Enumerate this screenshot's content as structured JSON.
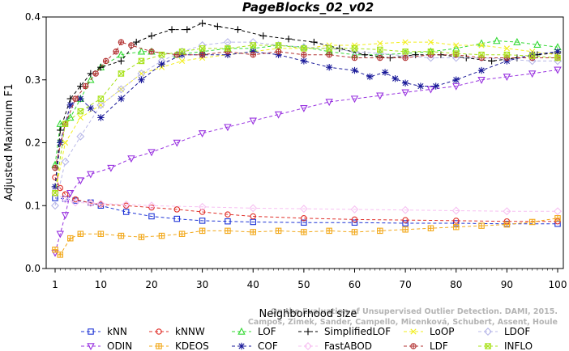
{
  "chart_data": {
    "type": "line",
    "title": "PageBlocks_02_v02",
    "xlabel": "Neighborhood size",
    "ylabel": "Adjusted Maximum F1",
    "xlim": [
      1,
      100
    ],
    "ylim": [
      0,
      0.4
    ],
    "xticks": [
      "1",
      "10",
      "20",
      "30",
      "40",
      "50",
      "60",
      "70",
      "80",
      "90",
      "100"
    ],
    "yticks": [
      "0.0",
      "0.1",
      "0.2",
      "0.3",
      "0.4"
    ],
    "grid": false,
    "legend_position": "bottom",
    "watermark": [
      "Campos, Zimek, Sander, Campello, Micenková, Schubert, Assent, Houle",
      "On the Evaluation of Unsupervised Outlier Detection. DAMI, 2015."
    ],
    "series": [
      {
        "name": "kNN",
        "color": "#1f35d6",
        "marker": "square",
        "points": [
          [
            1,
            0.112
          ],
          [
            3,
            0.111
          ],
          [
            5,
            0.108
          ],
          [
            8,
            0.105
          ],
          [
            10,
            0.1
          ],
          [
            15,
            0.09
          ],
          [
            20,
            0.083
          ],
          [
            25,
            0.079
          ],
          [
            30,
            0.076
          ],
          [
            35,
            0.075
          ],
          [
            40,
            0.074
          ],
          [
            50,
            0.073
          ],
          [
            60,
            0.073
          ],
          [
            70,
            0.072
          ],
          [
            80,
            0.072
          ],
          [
            90,
            0.071
          ],
          [
            100,
            0.071
          ]
        ]
      },
      {
        "name": "kNNW",
        "color": "#e0302a",
        "marker": "circle",
        "points": [
          [
            1,
            0.145
          ],
          [
            2,
            0.128
          ],
          [
            3,
            0.118
          ],
          [
            5,
            0.11
          ],
          [
            8,
            0.104
          ],
          [
            10,
            0.102
          ],
          [
            15,
            0.1
          ],
          [
            20,
            0.097
          ],
          [
            25,
            0.094
          ],
          [
            30,
            0.09
          ],
          [
            35,
            0.086
          ],
          [
            40,
            0.083
          ],
          [
            50,
            0.08
          ],
          [
            60,
            0.078
          ],
          [
            70,
            0.077
          ],
          [
            80,
            0.076
          ],
          [
            90,
            0.075
          ],
          [
            100,
            0.075
          ]
        ]
      },
      {
        "name": "LOF",
        "color": "#33d933",
        "marker": "triangle",
        "points": [
          [
            1,
            0.165
          ],
          [
            2,
            0.23
          ],
          [
            4,
            0.24
          ],
          [
            6,
            0.27
          ],
          [
            8,
            0.3
          ],
          [
            10,
            0.32
          ],
          [
            14,
            0.34
          ],
          [
            18,
            0.345
          ],
          [
            20,
            0.345
          ],
          [
            25,
            0.34
          ],
          [
            30,
            0.345
          ],
          [
            35,
            0.35
          ],
          [
            40,
            0.35
          ],
          [
            45,
            0.355
          ],
          [
            50,
            0.352
          ],
          [
            55,
            0.345
          ],
          [
            60,
            0.34
          ],
          [
            65,
            0.34
          ],
          [
            70,
            0.342
          ],
          [
            75,
            0.345
          ],
          [
            80,
            0.35
          ],
          [
            85,
            0.358
          ],
          [
            88,
            0.362
          ],
          [
            92,
            0.36
          ],
          [
            96,
            0.356
          ],
          [
            100,
            0.352
          ]
        ]
      },
      {
        "name": "SimplifiedLOF",
        "color": "#000000",
        "marker": "plus",
        "points": [
          [
            1,
            0.13
          ],
          [
            2,
            0.22
          ],
          [
            4,
            0.27
          ],
          [
            6,
            0.29
          ],
          [
            8,
            0.31
          ],
          [
            10,
            0.32
          ],
          [
            14,
            0.33
          ],
          [
            17,
            0.36
          ],
          [
            20,
            0.37
          ],
          [
            24,
            0.38
          ],
          [
            27,
            0.38
          ],
          [
            30,
            0.39
          ],
          [
            33,
            0.385
          ],
          [
            37,
            0.38
          ],
          [
            42,
            0.37
          ],
          [
            47,
            0.365
          ],
          [
            52,
            0.36
          ],
          [
            57,
            0.35
          ],
          [
            62,
            0.34
          ],
          [
            67,
            0.335
          ],
          [
            72,
            0.34
          ],
          [
            77,
            0.34
          ],
          [
            82,
            0.335
          ],
          [
            87,
            0.33
          ],
          [
            92,
            0.335
          ],
          [
            96,
            0.34
          ],
          [
            100,
            0.343
          ]
        ]
      },
      {
        "name": "LoOP",
        "color": "#f2ee1c",
        "marker": "x",
        "points": [
          [
            1,
            0.12
          ],
          [
            3,
            0.2
          ],
          [
            6,
            0.24
          ],
          [
            10,
            0.26
          ],
          [
            14,
            0.285
          ],
          [
            18,
            0.31
          ],
          [
            22,
            0.32
          ],
          [
            26,
            0.33
          ],
          [
            30,
            0.335
          ],
          [
            35,
            0.34
          ],
          [
            40,
            0.345
          ],
          [
            45,
            0.35
          ],
          [
            50,
            0.35
          ],
          [
            55,
            0.355
          ],
          [
            60,
            0.355
          ],
          [
            65,
            0.358
          ],
          [
            70,
            0.36
          ],
          [
            75,
            0.36
          ],
          [
            80,
            0.355
          ],
          [
            85,
            0.355
          ],
          [
            90,
            0.35
          ],
          [
            95,
            0.345
          ],
          [
            100,
            0.34
          ]
        ]
      },
      {
        "name": "LDOF",
        "color": "#b8b8e8",
        "marker": "diamond",
        "points": [
          [
            1,
            0.1
          ],
          [
            3,
            0.17
          ],
          [
            6,
            0.21
          ],
          [
            10,
            0.26
          ],
          [
            14,
            0.285
          ],
          [
            18,
            0.31
          ],
          [
            22,
            0.33
          ],
          [
            26,
            0.345
          ],
          [
            30,
            0.355
          ],
          [
            35,
            0.36
          ],
          [
            40,
            0.36
          ],
          [
            45,
            0.355
          ],
          [
            50,
            0.352
          ],
          [
            55,
            0.35
          ],
          [
            60,
            0.345
          ],
          [
            65,
            0.342
          ],
          [
            70,
            0.338
          ],
          [
            75,
            0.335
          ],
          [
            80,
            0.335
          ],
          [
            85,
            0.335
          ],
          [
            90,
            0.333
          ],
          [
            95,
            0.33
          ],
          [
            100,
            0.33
          ]
        ]
      },
      {
        "name": "ODIN",
        "color": "#9933e0",
        "marker": "triangle-down",
        "points": [
          [
            1,
            0.025
          ],
          [
            2,
            0.055
          ],
          [
            3,
            0.085
          ],
          [
            4,
            0.12
          ],
          [
            6,
            0.14
          ],
          [
            8,
            0.15
          ],
          [
            12,
            0.16
          ],
          [
            16,
            0.175
          ],
          [
            20,
            0.185
          ],
          [
            25,
            0.2
          ],
          [
            30,
            0.215
          ],
          [
            35,
            0.225
          ],
          [
            40,
            0.235
          ],
          [
            45,
            0.245
          ],
          [
            50,
            0.255
          ],
          [
            55,
            0.265
          ],
          [
            60,
            0.27
          ],
          [
            65,
            0.275
          ],
          [
            70,
            0.28
          ],
          [
            75,
            0.285
          ],
          [
            80,
            0.29
          ],
          [
            85,
            0.3
          ],
          [
            90,
            0.305
          ],
          [
            95,
            0.31
          ],
          [
            100,
            0.316
          ]
        ]
      },
      {
        "name": "KDEOS",
        "color": "#f2a81a",
        "marker": "square-cross",
        "points": [
          [
            1,
            0.03
          ],
          [
            2,
            0.022
          ],
          [
            4,
            0.048
          ],
          [
            6,
            0.055
          ],
          [
            10,
            0.055
          ],
          [
            14,
            0.052
          ],
          [
            18,
            0.05
          ],
          [
            22,
            0.052
          ],
          [
            26,
            0.055
          ],
          [
            30,
            0.06
          ],
          [
            35,
            0.06
          ],
          [
            40,
            0.058
          ],
          [
            45,
            0.06
          ],
          [
            50,
            0.058
          ],
          [
            55,
            0.06
          ],
          [
            60,
            0.058
          ],
          [
            65,
            0.06
          ],
          [
            70,
            0.062
          ],
          [
            75,
            0.064
          ],
          [
            80,
            0.066
          ],
          [
            85,
            0.068
          ],
          [
            90,
            0.07
          ],
          [
            95,
            0.074
          ],
          [
            100,
            0.08
          ]
        ]
      },
      {
        "name": "COF",
        "color": "#1a1a99",
        "marker": "star",
        "points": [
          [
            1,
            0.13
          ],
          [
            2,
            0.2
          ],
          [
            4,
            0.26
          ],
          [
            6,
            0.27
          ],
          [
            8,
            0.255
          ],
          [
            10,
            0.24
          ],
          [
            14,
            0.27
          ],
          [
            18,
            0.3
          ],
          [
            22,
            0.325
          ],
          [
            26,
            0.34
          ],
          [
            30,
            0.34
          ],
          [
            35,
            0.34
          ],
          [
            40,
            0.345
          ],
          [
            45,
            0.34
          ],
          [
            50,
            0.33
          ],
          [
            55,
            0.32
          ],
          [
            60,
            0.315
          ],
          [
            63,
            0.305
          ],
          [
            66,
            0.312
          ],
          [
            68,
            0.302
          ],
          [
            70,
            0.295
          ],
          [
            73,
            0.29
          ],
          [
            76,
            0.29
          ],
          [
            80,
            0.3
          ],
          [
            85,
            0.315
          ],
          [
            90,
            0.33
          ],
          [
            95,
            0.34
          ],
          [
            100,
            0.345
          ]
        ]
      },
      {
        "name": "FastABOD",
        "color": "#f7c0f2",
        "marker": "diamond",
        "points": [
          [
            1,
            0.12
          ],
          [
            3,
            0.11
          ],
          [
            5,
            0.105
          ],
          [
            8,
            0.104
          ],
          [
            10,
            0.103
          ],
          [
            15,
            0.102
          ],
          [
            20,
            0.1
          ],
          [
            30,
            0.098
          ],
          [
            40,
            0.096
          ],
          [
            50,
            0.095
          ],
          [
            60,
            0.094
          ],
          [
            70,
            0.093
          ],
          [
            80,
            0.092
          ],
          [
            90,
            0.091
          ],
          [
            100,
            0.091
          ]
        ]
      },
      {
        "name": "LDF",
        "color": "#b33333",
        "marker": "circle-plus",
        "points": [
          [
            1,
            0.16
          ],
          [
            3,
            0.23
          ],
          [
            5,
            0.27
          ],
          [
            7,
            0.29
          ],
          [
            9,
            0.31
          ],
          [
            11,
            0.33
          ],
          [
            13,
            0.345
          ],
          [
            14,
            0.36
          ],
          [
            16,
            0.355
          ],
          [
            20,
            0.345
          ],
          [
            25,
            0.34
          ],
          [
            30,
            0.34
          ],
          [
            35,
            0.345
          ],
          [
            40,
            0.34
          ],
          [
            45,
            0.345
          ],
          [
            50,
            0.34
          ],
          [
            55,
            0.34
          ],
          [
            60,
            0.335
          ],
          [
            65,
            0.335
          ],
          [
            70,
            0.335
          ],
          [
            75,
            0.34
          ],
          [
            80,
            0.34
          ],
          [
            85,
            0.335
          ],
          [
            90,
            0.335
          ],
          [
            95,
            0.335
          ],
          [
            100,
            0.335
          ]
        ]
      },
      {
        "name": "INFLO",
        "color": "#a8e21a",
        "marker": "square-x",
        "points": [
          [
            1,
            0.12
          ],
          [
            3,
            0.23
          ],
          [
            6,
            0.25
          ],
          [
            10,
            0.27
          ],
          [
            14,
            0.31
          ],
          [
            18,
            0.33
          ],
          [
            22,
            0.34
          ],
          [
            26,
            0.345
          ],
          [
            30,
            0.35
          ],
          [
            35,
            0.35
          ],
          [
            40,
            0.355
          ],
          [
            45,
            0.355
          ],
          [
            50,
            0.35
          ],
          [
            55,
            0.35
          ],
          [
            60,
            0.35
          ],
          [
            65,
            0.348
          ],
          [
            70,
            0.345
          ],
          [
            75,
            0.345
          ],
          [
            80,
            0.342
          ],
          [
            85,
            0.34
          ],
          [
            90,
            0.34
          ],
          [
            95,
            0.338
          ],
          [
            100,
            0.335
          ]
        ]
      }
    ]
  }
}
